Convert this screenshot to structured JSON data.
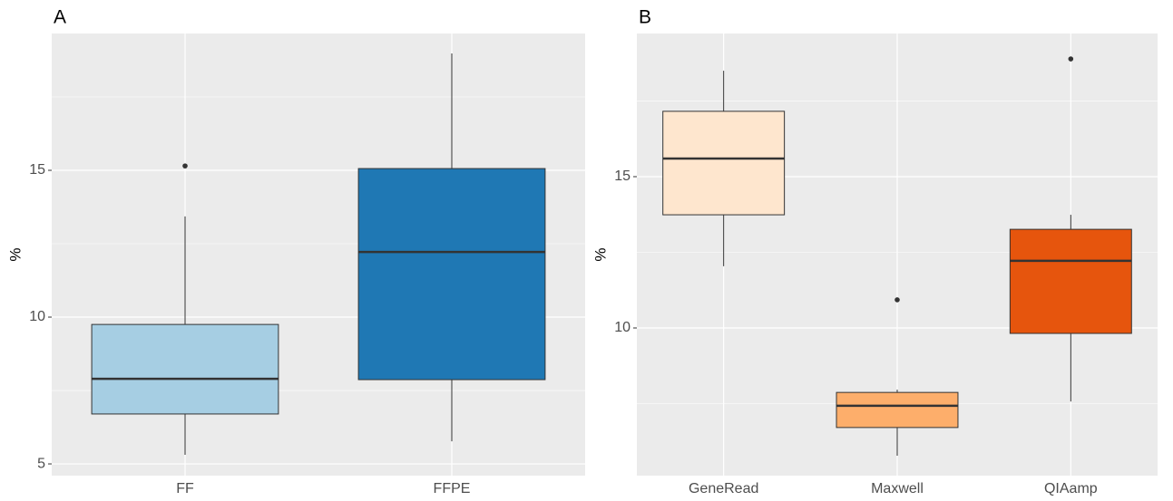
{
  "chart_data": [
    {
      "type": "box",
      "title": "A",
      "y_label": "%",
      "categories": [
        "FF",
        "FFPE"
      ],
      "colors": [
        "#a6cee3",
        "#1f78b4"
      ],
      "whisker_low": [
        5.31,
        5.77
      ],
      "q1": [
        6.7,
        7.87
      ],
      "median": [
        7.9,
        12.22
      ],
      "q3": [
        9.75,
        15.06
      ],
      "whisker_high": [
        13.43,
        18.98
      ],
      "outliers": [
        [
          15.15
        ],
        []
      ],
      "ylim": [
        4.6,
        19.66
      ],
      "yticks": [
        5,
        10,
        15
      ],
      "minor_yticks": [
        7.5,
        12.5,
        17.5
      ],
      "grid": true
    },
    {
      "type": "box",
      "title": "B",
      "y_label": "%",
      "categories": [
        "GeneRead",
        "Maxwell",
        "QIAamp"
      ],
      "colors": [
        "#fee6ce",
        "#fdae6b",
        "#e6550d"
      ],
      "whisker_low": [
        12.04,
        5.78,
        7.57
      ],
      "q1": [
        13.74,
        6.71,
        9.82
      ],
      "median": [
        15.6,
        7.43,
        12.22
      ],
      "q3": [
        17.16,
        7.87,
        13.26
      ],
      "whisker_high": [
        18.5,
        7.96,
        13.74
      ],
      "outliers": [
        [],
        [
          10.93
        ],
        [
          18.89
        ]
      ],
      "ylim": [
        5.12,
        19.73
      ],
      "yticks": [
        10,
        15
      ],
      "minor_yticks": [
        7.5,
        12.5,
        17.5
      ],
      "grid": true
    }
  ]
}
